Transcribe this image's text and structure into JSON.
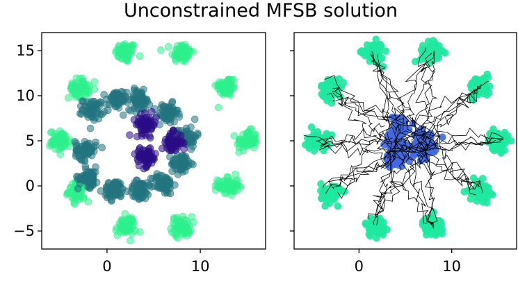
{
  "figure": {
    "title": "Unconstrained MFSB solution"
  },
  "colors": {
    "cluster_outer": "#27f58c",
    "cluster_ring": "#22707a",
    "cluster_inner": "#2a0b86",
    "target_outer_right": "#1fe8a0",
    "source_right": "#4169e1",
    "trajectory": "#000000"
  },
  "chart_data": [
    {
      "type": "scatter",
      "title": "",
      "xlabel": "",
      "ylabel": "",
      "xlim": [
        -7,
        17
      ],
      "ylim": [
        -7,
        17
      ],
      "xticks": [
        0,
        10
      ],
      "xtick_labels": [
        "0",
        "10"
      ],
      "yticks": [
        -5,
        0,
        5,
        10,
        15
      ],
      "ytick_labels": [
        "−5",
        "0",
        "5",
        "10",
        "15"
      ],
      "grid": false,
      "series": [
        {
          "color": "#2df08c",
          "points": [
            [
              2,
              14.8
            ],
            [
              8,
              14.8
            ],
            [
              12.8,
              11
            ],
            [
              15,
              5
            ],
            [
              13,
              0
            ],
            [
              8,
              -4.5
            ],
            [
              2,
              -4.5
            ],
            [
              -3,
              -0.6
            ],
            [
              -5,
              5
            ],
            [
              -3,
              10.8
            ]
          ]
        },
        {
          "color": "#237480",
          "points": [
            [
              -1.5,
              8.5
            ],
            [
              1,
              9.5
            ],
            [
              3.5,
              9.5
            ],
            [
              6.5,
              8
            ],
            [
              8.5,
              5.5
            ],
            [
              8,
              2.5
            ],
            [
              6,
              0.2
            ],
            [
              3.5,
              -0.5
            ],
            [
              0.8,
              -0.5
            ],
            [
              -2,
              1
            ],
            [
              -2.3,
              4
            ]
          ]
        },
        {
          "color": "#2b0c87",
          "points": [
            [
              4.2,
              6.8
            ],
            [
              7,
              4.8
            ],
            [
              4.2,
              3.2
            ]
          ]
        }
      ]
    },
    {
      "type": "scatter",
      "title": "",
      "xlabel": "",
      "ylabel": "",
      "xlim": [
        -7,
        17
      ],
      "ylim": [
        -7,
        17
      ],
      "xticks": [
        0,
        10
      ],
      "xtick_labels": [
        "0",
        "10"
      ],
      "yticks": [
        -5,
        0,
        5,
        10,
        15
      ],
      "ytick_labels": [
        "",
        "",
        "",
        "",
        ""
      ],
      "grid": false,
      "series": [
        {
          "color": "#1fe8a0",
          "points": [
            [
              1.5,
              14.8
            ],
            [
              7.7,
              14.8
            ],
            [
              13,
              11
            ],
            [
              15,
              5
            ],
            [
              13,
              -0.5
            ],
            [
              8,
              -4.5
            ],
            [
              1.8,
              -4.5
            ],
            [
              -3,
              -0.8
            ],
            [
              -4.5,
              5
            ],
            [
              -3,
              10.8
            ]
          ]
        },
        {
          "color": "#4169e1",
          "points": [
            [
              4.3,
              6.6
            ],
            [
              7,
              5
            ],
            [
              4,
              4.8
            ],
            [
              4,
              3.2
            ],
            [
              7,
              4.2
            ]
          ]
        },
        {
          "color": "#000000",
          "style": "trajectories"
        }
      ]
    }
  ]
}
